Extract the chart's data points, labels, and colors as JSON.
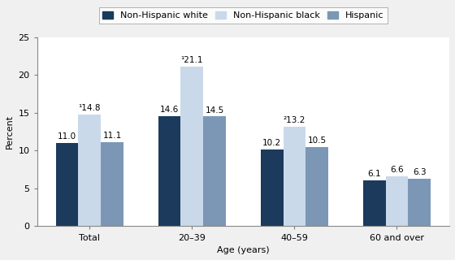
{
  "categories": [
    "Total",
    "20–39",
    "40–59",
    "60 and over"
  ],
  "series": {
    "Non-Hispanic white": [
      11.0,
      14.6,
      10.2,
      6.1
    ],
    "Non-Hispanic black": [
      14.8,
      21.1,
      13.2,
      6.6
    ],
    "Hispanic": [
      11.1,
      14.5,
      10.5,
      6.3
    ]
  },
  "annotations": {
    "Non-Hispanic black": [
      "¹",
      "¹",
      "²",
      ""
    ]
  },
  "colors": {
    "Non-Hispanic white": "#1b3a5c",
    "Non-Hispanic black": "#c9d9ea",
    "Hispanic": "#7b97b5"
  },
  "ylabel": "Percent",
  "xlabel": "Age (years)",
  "ylim": [
    0,
    25
  ],
  "yticks": [
    0,
    5,
    10,
    15,
    20,
    25
  ],
  "bar_width": 0.22,
  "label_fontsize": 8,
  "legend_fontsize": 8,
  "value_fontsize": 7.5,
  "bg_color": "#f0f0f0"
}
